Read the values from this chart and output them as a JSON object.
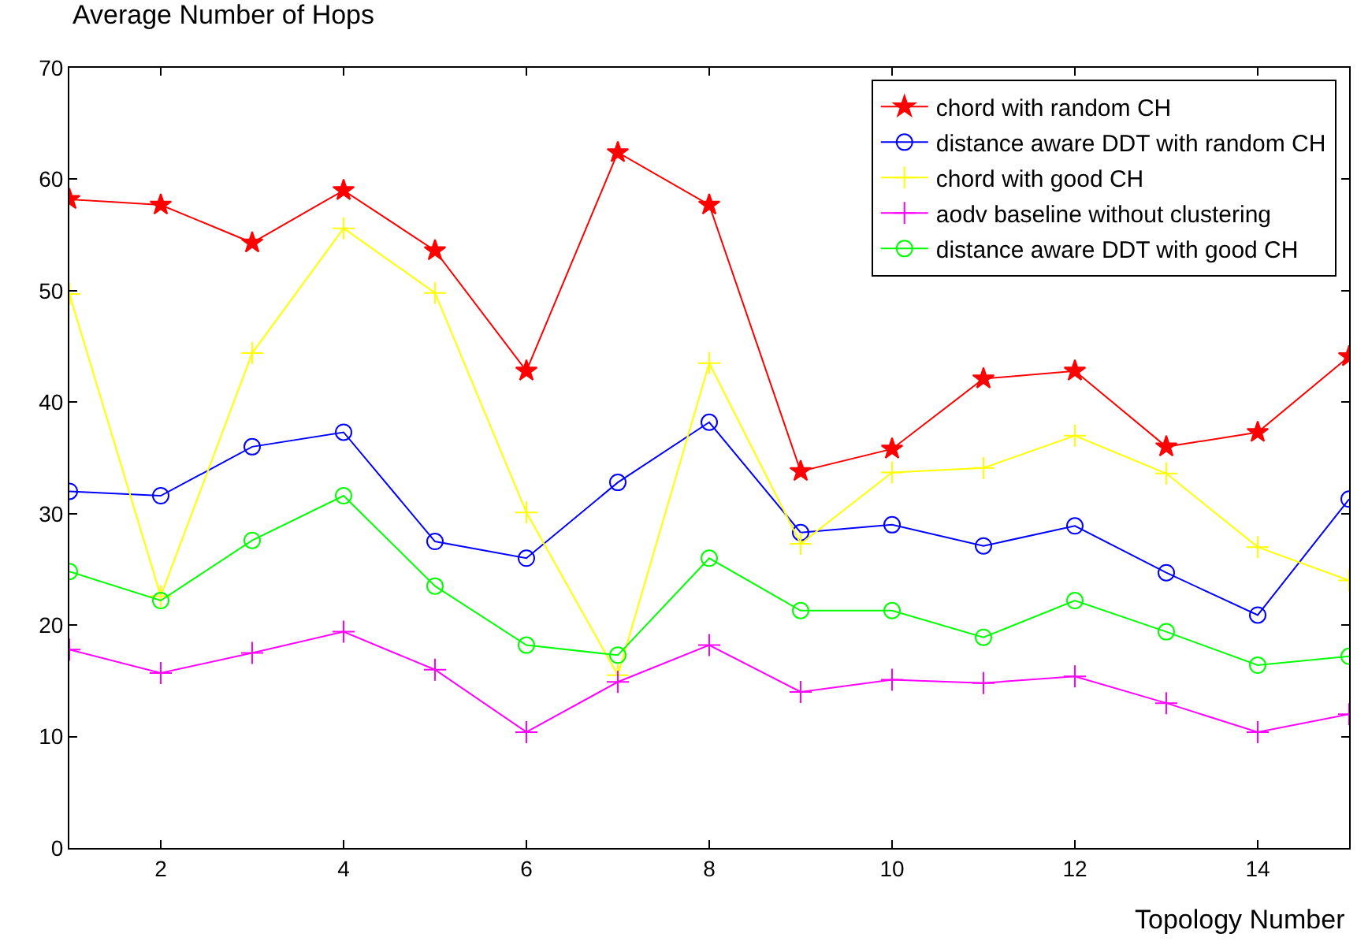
{
  "chart_data": {
    "type": "line",
    "ylabel": "Average Number of Hops",
    "xlabel": "Topology Number",
    "x": [
      1,
      2,
      3,
      4,
      5,
      6,
      7,
      8,
      9,
      10,
      11,
      12,
      13,
      14,
      15
    ],
    "xlim": [
      1,
      15
    ],
    "xticks": [
      2,
      4,
      6,
      8,
      10,
      12,
      14
    ],
    "ylim": [
      0,
      70
    ],
    "yticks": [
      0,
      10,
      20,
      30,
      40,
      50,
      60,
      70
    ],
    "grid": false,
    "legend": "top right",
    "line_style": "solid",
    "series": [
      {
        "name": "chord with random CH",
        "color": "#ff0000",
        "marker": "star",
        "values": [
          58.2,
          57.7,
          54.3,
          59,
          53.6,
          42.8,
          62.4,
          57.7,
          33.8,
          35.8,
          42.1,
          42.8,
          36,
          37.3,
          44.1
        ]
      },
      {
        "name": "distance aware DDT with random CH",
        "color": "#0000ff",
        "marker": "circle",
        "values": [
          32,
          31.6,
          36,
          37.3,
          27.5,
          26,
          32.8,
          38.2,
          28.3,
          29,
          27.1,
          28.9,
          24.7,
          20.9,
          31.3
        ]
      },
      {
        "name": "chord with good CH",
        "color": "#ffff00",
        "marker": "cross",
        "values": [
          49.7,
          22.6,
          44.4,
          55.6,
          49.8,
          30.1,
          15.5,
          43.5,
          27.3,
          33.7,
          34.1,
          37,
          33.6,
          27,
          24
        ]
      },
      {
        "name": "aodv baseline without clustering",
        "color": "#ff00ff",
        "marker": "cross",
        "values": [
          17.8,
          15.7,
          17.5,
          19.4,
          16,
          10.4,
          14.9,
          18.2,
          14,
          15.1,
          14.8,
          15.4,
          13,
          10.4,
          12
        ]
      },
      {
        "name": "distance aware DDT with good CH",
        "color": "#00ff00",
        "marker": "circle",
        "values": [
          24.8,
          22.2,
          27.6,
          31.6,
          23.5,
          18.2,
          17.3,
          26,
          21.3,
          21.3,
          18.9,
          22.2,
          19.4,
          16.4,
          17.2
        ]
      }
    ]
  }
}
